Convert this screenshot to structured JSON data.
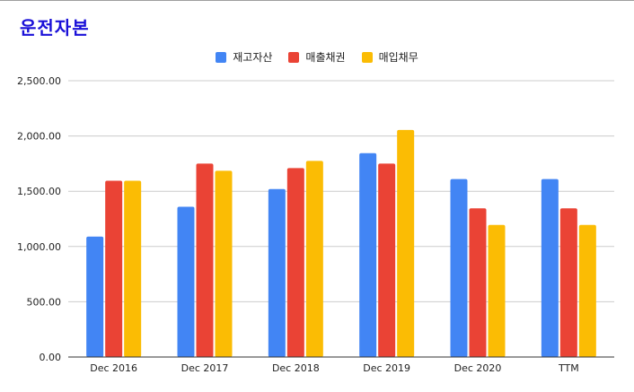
{
  "chart_data": {
    "type": "bar",
    "title": "운전자본",
    "categories": [
      "Dec 2016",
      "Dec 2017",
      "Dec 2018",
      "Dec 2019",
      "Dec 2020",
      "TTM"
    ],
    "series": [
      {
        "name": "재고자산",
        "color": "#4285f4",
        "values": [
          1090,
          1360,
          1520,
          1845,
          1610,
          1610
        ]
      },
      {
        "name": "매출채권",
        "color": "#ea4335",
        "values": [
          1595,
          1750,
          1710,
          1750,
          1345,
          1345
        ]
      },
      {
        "name": "매입채무",
        "color": "#fbbc04",
        "values": [
          1595,
          1685,
          1775,
          2055,
          1195,
          1195
        ]
      }
    ],
    "yticks": [
      "0.00",
      "500.00",
      "1,000.00",
      "1,500.00",
      "2,000.00",
      "2,500.00"
    ],
    "ylim": [
      0,
      2500
    ],
    "legend_position": "top-center",
    "grid": true
  }
}
